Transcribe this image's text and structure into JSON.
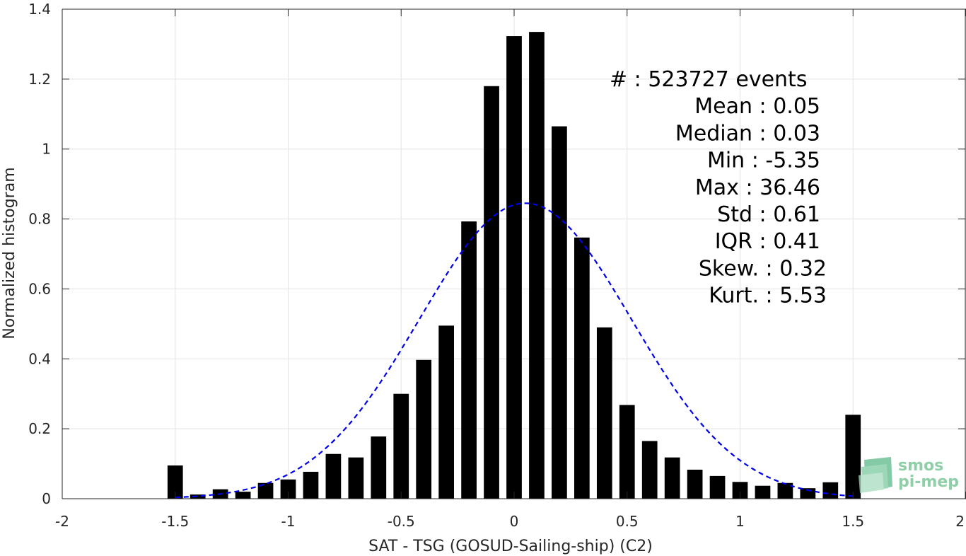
{
  "chart_data": {
    "type": "bar",
    "xlabel": "SAT - TSG (GOSUD-Sailing-ship) (C2)",
    "ylabel": "Normalized histogram",
    "xlim": [
      -2,
      2
    ],
    "ylim": [
      0,
      1.4
    ],
    "xticks": [
      -2,
      -1.5,
      -1,
      -0.5,
      0,
      0.5,
      1,
      1.5,
      2
    ],
    "xtick_labels": [
      "-2",
      "-1.5",
      "-1",
      "-0.5",
      "0",
      "0.5",
      "1",
      "1.5",
      "2"
    ],
    "yticks": [
      0,
      0.2,
      0.4,
      0.6,
      0.8,
      1,
      1.2,
      1.4
    ],
    "ytick_labels": [
      "0",
      "0.2",
      "0.4",
      "0.6",
      "0.8",
      "1",
      "1.2",
      "1.4"
    ],
    "grid": true,
    "bin_width": 0.1,
    "x": [
      -1.5,
      -1.4,
      -1.3,
      -1.2,
      -1.1,
      -1.0,
      -0.9,
      -0.8,
      -0.7,
      -0.6,
      -0.5,
      -0.4,
      -0.3,
      -0.2,
      -0.1,
      0.0,
      0.1,
      0.2,
      0.3,
      0.4,
      0.5,
      0.6,
      0.7,
      0.8,
      0.9,
      1.0,
      1.1,
      1.2,
      1.3,
      1.4,
      1.5
    ],
    "values": [
      0.095,
      0.012,
      0.027,
      0.02,
      0.045,
      0.055,
      0.077,
      0.128,
      0.118,
      0.178,
      0.3,
      0.397,
      0.495,
      0.793,
      1.18,
      1.323,
      1.335,
      1.065,
      0.747,
      0.49,
      0.268,
      0.165,
      0.118,
      0.083,
      0.065,
      0.048,
      0.037,
      0.045,
      0.03,
      0.047,
      0.24
    ],
    "bar_color": "#000000",
    "fit_curve": {
      "kind": "normal",
      "mean": 0.05,
      "std": 0.47,
      "peak": 0.845,
      "xrange": [
        -1.5,
        1.5
      ],
      "color": "#0000ee",
      "style": "dashed"
    },
    "stats": [
      {
        "label": "#  : 523727 events",
        "align": "first"
      },
      {
        "label": "Mean : 0.05"
      },
      {
        "label": "Median : 0.03"
      },
      {
        "label": "Min : -5.35"
      },
      {
        "label": "Max : 36.46"
      },
      {
        "label": "Std : 0.61"
      },
      {
        "label": "IQR : 0.41"
      },
      {
        "label": "Skew. : 0.32"
      },
      {
        "label": "Kurt. : 5.53"
      }
    ],
    "logo": {
      "line1": "smos",
      "line2": "pi-mep"
    }
  }
}
